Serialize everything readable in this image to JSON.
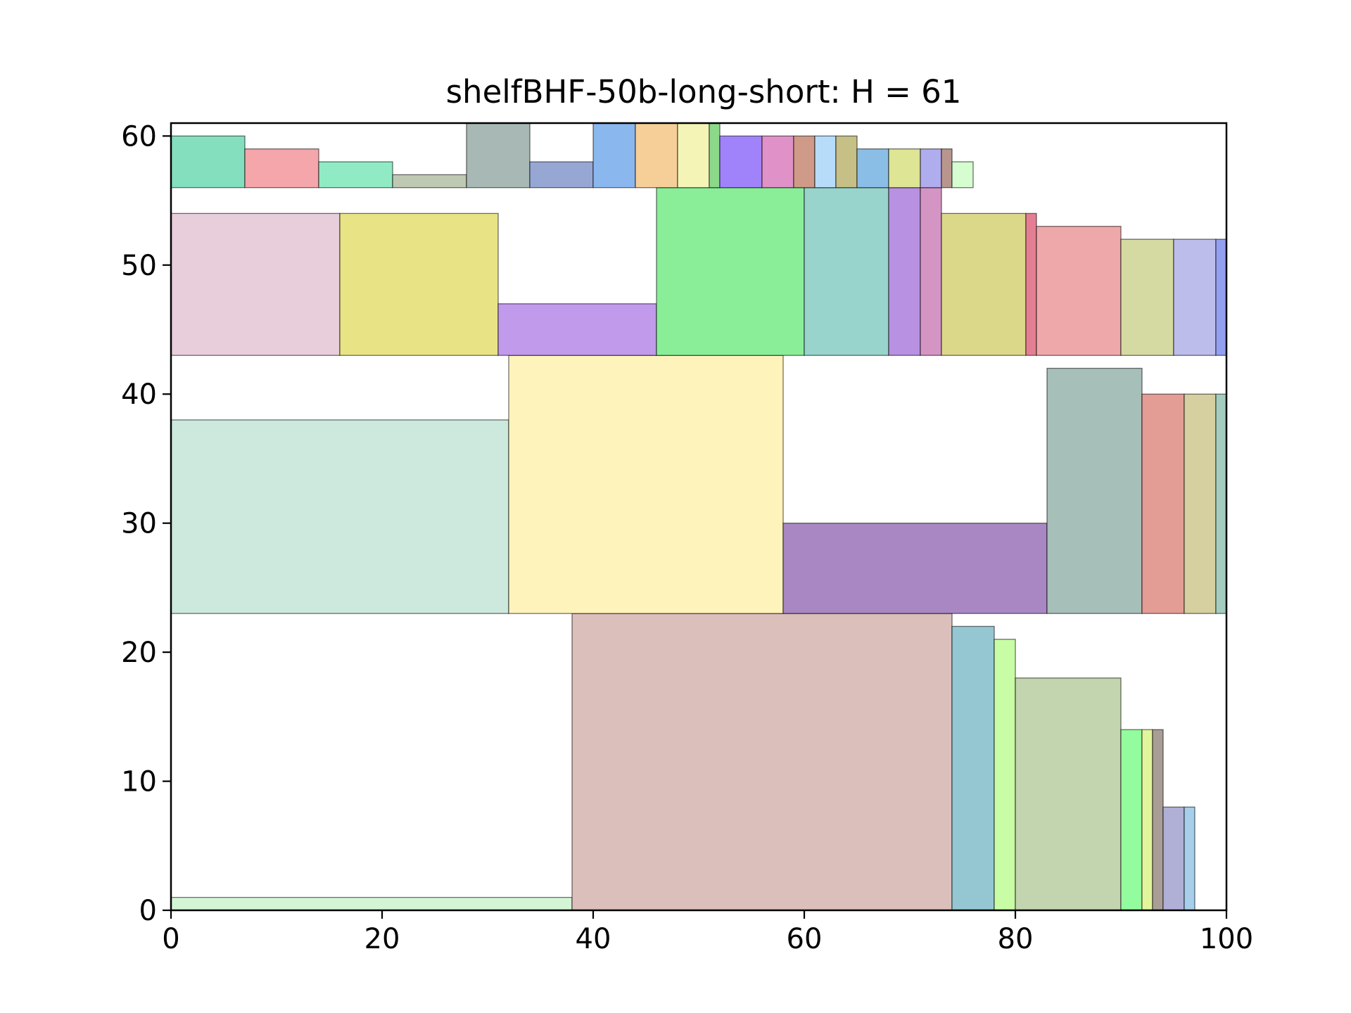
{
  "chart_data": {
    "type": "rectangles",
    "title": "shelfBHF-50b-long-short: H = 61",
    "xlabel": "",
    "ylabel": "",
    "xlim": [
      0,
      100
    ],
    "ylim": [
      0,
      61
    ],
    "xticks": [
      0,
      20,
      40,
      60,
      80,
      100
    ],
    "yticks": [
      0,
      10,
      20,
      30,
      40,
      50,
      60
    ],
    "grid": false,
    "rectangles": [
      {
        "x": 0,
        "y": 0,
        "w": 38,
        "h": 1,
        "color": "#d3f5d6"
      },
      {
        "x": 38,
        "y": 0,
        "w": 36,
        "h": 23,
        "color": "#dbbfbb"
      },
      {
        "x": 74,
        "y": 0,
        "w": 4,
        "h": 22,
        "color": "#95c7d3"
      },
      {
        "x": 78,
        "y": 0,
        "w": 2,
        "h": 21,
        "color": "#c8fda5"
      },
      {
        "x": 80,
        "y": 0,
        "w": 10,
        "h": 18,
        "color": "#c2d5ae"
      },
      {
        "x": 90,
        "y": 0,
        "w": 2,
        "h": 14,
        "color": "#93fc9e"
      },
      {
        "x": 92,
        "y": 0,
        "w": 1,
        "h": 14,
        "color": "#e1f59a"
      },
      {
        "x": 93,
        "y": 0,
        "w": 1,
        "h": 14,
        "color": "#a99e96"
      },
      {
        "x": 94,
        "y": 0,
        "w": 2,
        "h": 8,
        "color": "#b0afd6"
      },
      {
        "x": 96,
        "y": 0,
        "w": 1,
        "h": 8,
        "color": "#a5cfea"
      },
      {
        "x": 0,
        "y": 23,
        "w": 32,
        "h": 15,
        "color": "#cde8dc"
      },
      {
        "x": 32,
        "y": 23,
        "w": 26,
        "h": 20,
        "color": "#fff3bc"
      },
      {
        "x": 58,
        "y": 23,
        "w": 25,
        "h": 7,
        "color": "#a887c2"
      },
      {
        "x": 83,
        "y": 23,
        "w": 9,
        "h": 19,
        "color": "#a7bfb9"
      },
      {
        "x": 92,
        "y": 23,
        "w": 4,
        "h": 17,
        "color": "#e39d95"
      },
      {
        "x": 96,
        "y": 23,
        "w": 3,
        "h": 17,
        "color": "#d6cf9f"
      },
      {
        "x": 99,
        "y": 23,
        "w": 1,
        "h": 17,
        "color": "#a3cdbe"
      },
      {
        "x": 0,
        "y": 43,
        "w": 16,
        "h": 11,
        "color": "#e8cddb"
      },
      {
        "x": 16,
        "y": 43,
        "w": 15,
        "h": 11,
        "color": "#e8e486"
      },
      {
        "x": 31,
        "y": 43,
        "w": 15,
        "h": 4,
        "color": "#c29aec"
      },
      {
        "x": 46,
        "y": 43,
        "w": 14,
        "h": 13,
        "color": "#8aee98"
      },
      {
        "x": 60,
        "y": 43,
        "w": 8,
        "h": 13,
        "color": "#98d4cc"
      },
      {
        "x": 68,
        "y": 43,
        "w": 3,
        "h": 13,
        "color": "#b891e2"
      },
      {
        "x": 71,
        "y": 43,
        "w": 2,
        "h": 13,
        "color": "#d495c4"
      },
      {
        "x": 73,
        "y": 43,
        "w": 8,
        "h": 11,
        "color": "#dbd88a"
      },
      {
        "x": 81,
        "y": 43,
        "w": 1,
        "h": 11,
        "color": "#e47f93"
      },
      {
        "x": 82,
        "y": 43,
        "w": 8,
        "h": 10,
        "color": "#efa8aa"
      },
      {
        "x": 90,
        "y": 43,
        "w": 5,
        "h": 9,
        "color": "#d5daa2"
      },
      {
        "x": 95,
        "y": 43,
        "w": 4,
        "h": 9,
        "color": "#bdbdeb"
      },
      {
        "x": 99,
        "y": 43,
        "w": 1,
        "h": 9,
        "color": "#949ff0"
      },
      {
        "x": 0,
        "y": 56,
        "w": 7,
        "h": 4,
        "color": "#83dfbe"
      },
      {
        "x": 7,
        "y": 56,
        "w": 7,
        "h": 3,
        "color": "#f4a6aa"
      },
      {
        "x": 14,
        "y": 56,
        "w": 7,
        "h": 2,
        "color": "#90ebc5"
      },
      {
        "x": 21,
        "y": 56,
        "w": 7,
        "h": 1,
        "color": "#bec8b3"
      },
      {
        "x": 28,
        "y": 56,
        "w": 6,
        "h": 5,
        "color": "#a8b9b5"
      },
      {
        "x": 34,
        "y": 56,
        "w": 6,
        "h": 2,
        "color": "#97a7d3"
      },
      {
        "x": 40,
        "y": 56,
        "w": 4,
        "h": 5,
        "color": "#8bb7ef"
      },
      {
        "x": 44,
        "y": 56,
        "w": 4,
        "h": 5,
        "color": "#f6cf98"
      },
      {
        "x": 48,
        "y": 56,
        "w": 3,
        "h": 5,
        "color": "#f3f4b6"
      },
      {
        "x": 51,
        "y": 56,
        "w": 1,
        "h": 5,
        "color": "#8cd98a"
      },
      {
        "x": 52,
        "y": 56,
        "w": 4,
        "h": 4,
        "color": "#a083fb"
      },
      {
        "x": 56,
        "y": 56,
        "w": 3,
        "h": 4,
        "color": "#e091c7"
      },
      {
        "x": 59,
        "y": 56,
        "w": 2,
        "h": 4,
        "color": "#cf9a87"
      },
      {
        "x": 61,
        "y": 56,
        "w": 2,
        "h": 4,
        "color": "#b6dcfa"
      },
      {
        "x": 63,
        "y": 56,
        "w": 2,
        "h": 4,
        "color": "#c6bf86"
      },
      {
        "x": 65,
        "y": 56,
        "w": 3,
        "h": 3,
        "color": "#8bbee6"
      },
      {
        "x": 68,
        "y": 56,
        "w": 3,
        "h": 3,
        "color": "#dee594"
      },
      {
        "x": 71,
        "y": 56,
        "w": 2,
        "h": 3,
        "color": "#b0adee"
      },
      {
        "x": 73,
        "y": 56,
        "w": 1,
        "h": 3,
        "color": "#b8968e"
      },
      {
        "x": 74,
        "y": 56,
        "w": 2,
        "h": 2,
        "color": "#d6fdd0"
      }
    ]
  }
}
